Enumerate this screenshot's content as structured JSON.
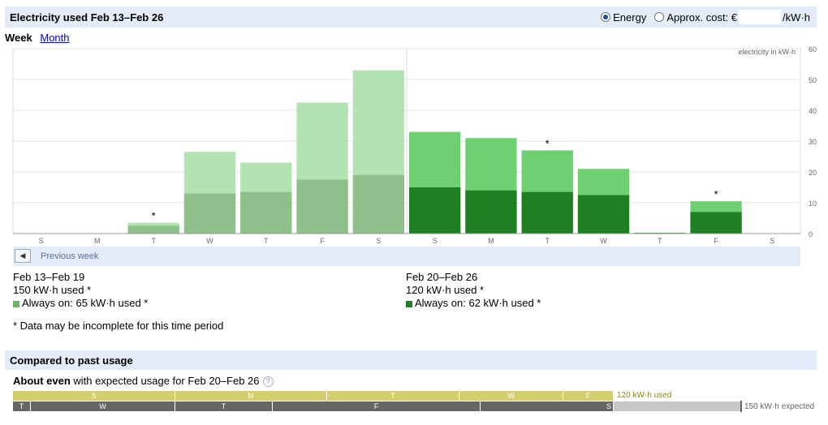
{
  "header": {
    "title": "Electricity used Feb 13–Feb 26",
    "energy_label": "Energy",
    "cost_label": "Approx. cost: €",
    "cost_value": "",
    "cost_unit": "/kW·h"
  },
  "tabs": {
    "week": "Week",
    "month": "Month"
  },
  "chart_data": {
    "type": "bar",
    "ylabel": "electricity in kW·h",
    "ylim": [
      0,
      60
    ],
    "yticks": [
      0,
      10,
      20,
      30,
      40,
      50,
      60
    ],
    "categories": [
      "S",
      "M",
      "T",
      "W",
      "T",
      "F",
      "S",
      "S",
      "M",
      "T",
      "W",
      "T",
      "F",
      "S"
    ],
    "series": [
      {
        "week": "Feb 13–Feb 19",
        "role": "total",
        "values": [
          0,
          0,
          3.5,
          26.5,
          23,
          42.5,
          53,
          0,
          0,
          0,
          0,
          0,
          0,
          0
        ]
      },
      {
        "week": "Feb 13–Feb 19",
        "role": "always-on",
        "values": [
          0,
          0,
          2.5,
          13,
          13.5,
          17.5,
          19,
          0,
          0,
          0,
          0,
          0,
          0,
          0
        ]
      },
      {
        "week": "Feb 20–Feb 26",
        "role": "total",
        "values": [
          0,
          0,
          0,
          0,
          0,
          0,
          0,
          33,
          31,
          27,
          21,
          0.3,
          10.5,
          0
        ]
      },
      {
        "week": "Feb 20–Feb 26",
        "role": "always-on",
        "values": [
          0,
          0,
          0,
          0,
          0,
          0,
          0,
          15,
          14,
          13.5,
          12.5,
          0.2,
          7,
          0
        ]
      }
    ],
    "incomplete_marks": [
      2,
      9,
      12
    ],
    "incomplete_symbol": "*",
    "colors": {
      "week1_total": "#b3e3b2",
      "week1_always_on": "#8fbf8a",
      "week2_total": "#6fd071",
      "week2_always_on": "#1f7f23",
      "grid": "#e6e6e6",
      "axis_text": "#666666"
    }
  },
  "previous_week": {
    "label": "Previous week",
    "icon": "arrow-left-icon"
  },
  "week1": {
    "range": "Feb 13–Feb 19",
    "used": "150 kW·h used *",
    "always_on": "Always on: 65 kW·h used *",
    "color": "#6fb56c"
  },
  "week2": {
    "range": "Feb 20–Feb 26",
    "used": "120 kW·h used *",
    "always_on": "Always on: 62 kW·h used *",
    "color": "#1f7f23"
  },
  "footnote": "* Data may be incomplete for this time period",
  "compare": {
    "title": "Compared to past usage",
    "verdict": "About even",
    "verdict_rest": " with expected usage for Feb 20–Feb 26",
    "used_label": "120 kW·h used",
    "expected_label": "150 kW·h expected",
    "used_days": [
      "S",
      "M",
      "T",
      "W",
      "F"
    ],
    "expected_days": [
      "T",
      "W",
      "T",
      "F",
      "S"
    ]
  }
}
